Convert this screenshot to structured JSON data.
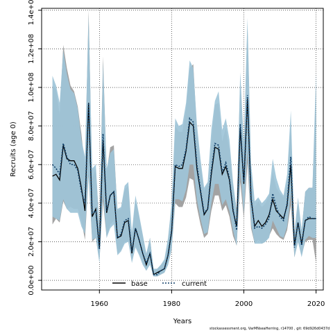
{
  "chart_data": {
    "type": "line",
    "xlabel": "Years",
    "ylabel": "Recruits (age 0)",
    "xlim": [
      1944,
      2022
    ],
    "ylim": [
      -5000000,
      141000000
    ],
    "xticks": [
      1960,
      1980,
      2000,
      2020
    ],
    "xtick_labels": [
      "1960",
      "1980",
      "2000",
      "2020"
    ],
    "yticks": [
      0,
      20000000,
      40000000,
      60000000,
      80000000,
      100000000,
      120000000,
      140000000
    ],
    "ytick_labels": [
      "0.0e+00",
      "2.0e+07",
      "4.0e+07",
      "6.0e+07",
      "8.0e+07",
      "1.0e+08",
      "1.2e+08",
      "1.4e+08"
    ],
    "grid": true,
    "legend_position": "bottom-left",
    "colors": {
      "base": "#000000",
      "current": "#0d3c66",
      "band_base": "#999999",
      "band_current": "#9ec4d8"
    },
    "x": [
      1947,
      1948,
      1949,
      1950,
      1951,
      1952,
      1953,
      1954,
      1955,
      1956,
      1957,
      1958,
      1959,
      1960,
      1961,
      1962,
      1963,
      1964,
      1965,
      1966,
      1967,
      1968,
      1969,
      1970,
      1971,
      1972,
      1973,
      1974,
      1975,
      1976,
      1977,
      1978,
      1979,
      1980,
      1981,
      1982,
      1983,
      1984,
      1985,
      1986,
      1987,
      1988,
      1989,
      1990,
      1991,
      1992,
      1993,
      1994,
      1995,
      1996,
      1997,
      1998,
      1999,
      2000,
      2001,
      2002,
      2003,
      2004,
      2005,
      2006,
      2007,
      2008,
      2009,
      2010,
      2011,
      2012,
      2013,
      2014,
      2015,
      2016,
      2017,
      2018,
      2019,
      2020
    ],
    "series": [
      {
        "name": "base",
        "values": [
          54,
          55,
          52,
          70,
          63,
          62,
          62,
          58,
          48,
          36,
          92,
          33,
          37,
          17,
          73,
          35,
          44,
          46,
          22,
          23,
          30,
          31,
          14,
          27,
          21,
          14,
          8,
          14,
          3,
          4,
          5,
          6,
          13,
          25,
          59,
          58,
          58,
          67,
          82,
          80,
          58,
          46,
          34,
          37,
          55,
          69,
          68,
          55,
          59,
          52,
          36,
          28,
          79,
          50,
          94,
          42,
          28,
          31,
          28,
          30,
          34,
          42,
          36,
          34,
          32,
          39,
          60,
          18,
          30,
          19,
          31,
          32,
          32,
          32
        ],
        "lower": [
          29,
          32,
          30,
          41,
          37,
          38,
          37,
          37,
          31,
          21,
          54,
          20,
          22,
          10,
          41,
          22,
          29,
          31,
          14,
          16,
          20,
          20,
          10,
          18,
          14,
          9,
          5,
          9,
          2,
          2,
          3,
          4,
          8,
          16,
          40,
          38,
          38,
          43,
          53,
          52,
          38,
          29,
          22,
          24,
          36,
          44,
          44,
          36,
          39,
          33,
          23,
          18,
          51,
          32,
          61,
          27,
          19,
          21,
          19,
          20,
          23,
          27,
          24,
          22,
          21,
          26,
          39,
          12,
          20,
          13,
          20,
          21,
          21,
          9
        ],
        "upper": [
          101,
          99,
          86,
          122,
          110,
          101,
          98,
          90,
          76,
          58,
          140,
          53,
          58,
          28,
          116,
          56,
          69,
          70,
          36,
          37,
          47,
          49,
          23,
          42,
          33,
          23,
          13,
          22,
          5,
          6,
          8,
          10,
          21,
          39,
          80,
          77,
          77,
          89,
          110,
          112,
          78,
          60,
          46,
          50,
          72,
          91,
          92,
          72,
          79,
          68,
          49,
          37,
          104,
          66,
          133,
          56,
          38,
          41,
          38,
          40,
          44,
          56,
          48,
          45,
          43,
          51,
          80,
          25,
          40,
          26,
          46,
          48,
          48,
          98
        ]
      },
      {
        "name": "current",
        "values": [
          60,
          58,
          55,
          71,
          64,
          60,
          60,
          57,
          46,
          40,
          92,
          35,
          36,
          16,
          76,
          36,
          44,
          46,
          22,
          24,
          31,
          32,
          15,
          27,
          21,
          14,
          9,
          14,
          3,
          3,
          5,
          6,
          13,
          26,
          60,
          59,
          60,
          68,
          84,
          82,
          60,
          47,
          35,
          37,
          57,
          71,
          70,
          56,
          61,
          53,
          37,
          26,
          81,
          51,
          96,
          43,
          27,
          28,
          27,
          29,
          32,
          45,
          38,
          33,
          31,
          40,
          64,
          17,
          30,
          18,
          31,
          33,
          32,
          32
        ],
        "lower": [
          33,
          32,
          31,
          42,
          37,
          35,
          35,
          35,
          28,
          24,
          55,
          21,
          22,
          9,
          45,
          22,
          27,
          29,
          13,
          15,
          19,
          20,
          9,
          17,
          13,
          8,
          5,
          8,
          2,
          2,
          3,
          4,
          8,
          16,
          42,
          42,
          41,
          47,
          60,
          60,
          42,
          32,
          24,
          25,
          40,
          50,
          50,
          39,
          42,
          36,
          26,
          18,
          57,
          35,
          67,
          29,
          19,
          19,
          19,
          20,
          22,
          31,
          27,
          23,
          22,
          28,
          45,
          12,
          20,
          12,
          21,
          23,
          22,
          22
        ],
        "upper": [
          106,
          101,
          92,
          119,
          107,
          99,
          97,
          89,
          73,
          64,
          137,
          58,
          60,
          27,
          113,
          58,
          66,
          68,
          37,
          38,
          49,
          51,
          25,
          44,
          34,
          24,
          14,
          22,
          6,
          6,
          8,
          11,
          22,
          40,
          84,
          80,
          81,
          92,
          114,
          110,
          81,
          63,
          48,
          51,
          78,
          93,
          98,
          78,
          84,
          73,
          51,
          36,
          108,
          71,
          136,
          61,
          41,
          43,
          40,
          42,
          45,
          63,
          53,
          47,
          44,
          55,
          88,
          25,
          43,
          26,
          46,
          48,
          48,
          108
        ]
      }
    ],
    "footer": "stockassessment.org, VarMNseaHerring, r14700 , git: 69d926d0437d"
  }
}
